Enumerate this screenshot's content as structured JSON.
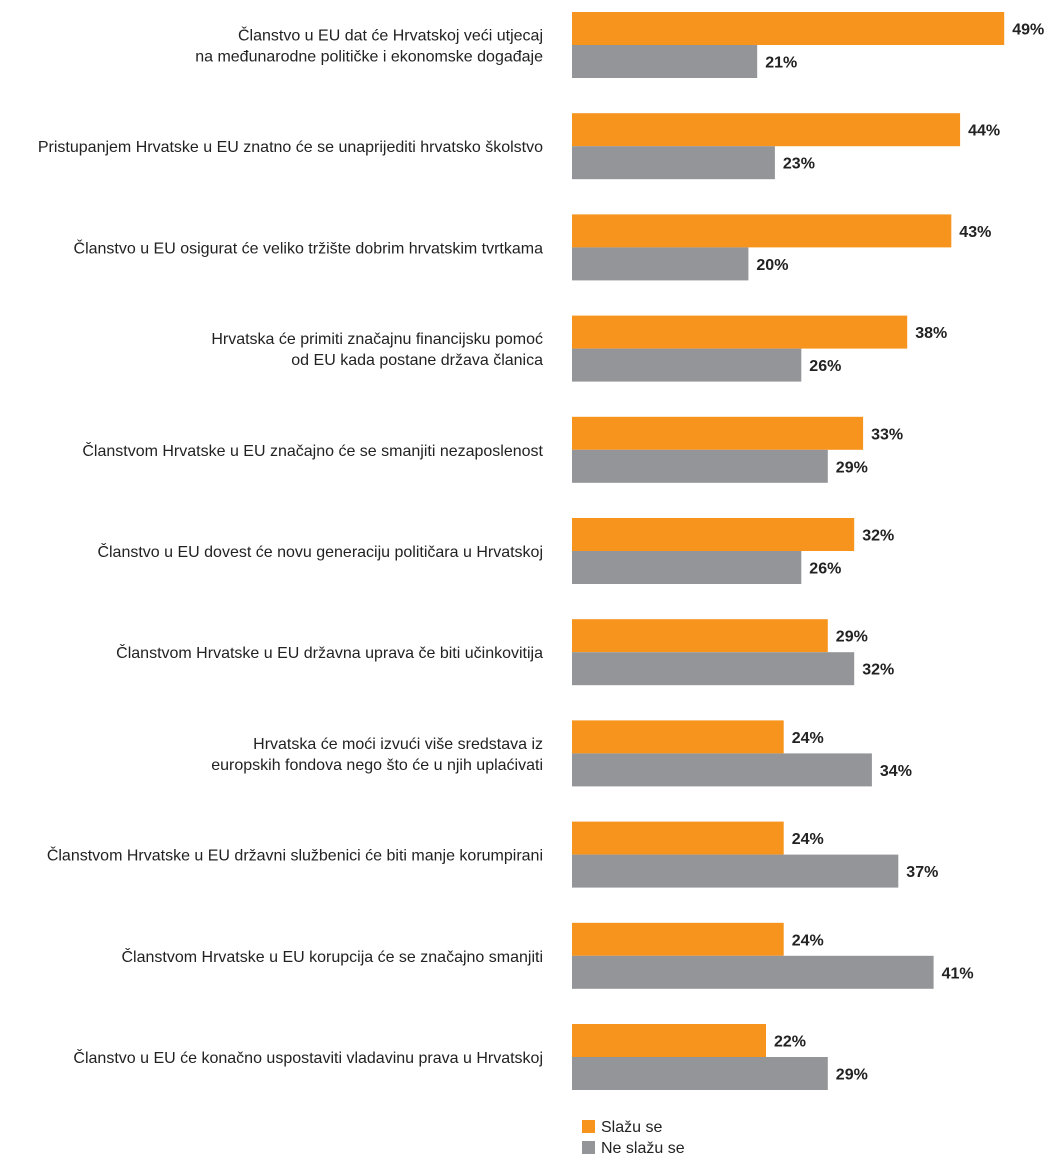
{
  "chart_data": {
    "type": "bar",
    "orientation": "horizontal",
    "unit": "%",
    "categories": [
      [
        "Članstvo u EU dat će Hrvatskoj veći utjecaj",
        "na međunarodne političke i ekonomske događaje"
      ],
      [
        "Pristupanjem Hrvatske u EU znatno će se unaprijediti hrvatsko školstvo"
      ],
      [
        "Članstvo u EU osigurat će veliko tržište dobrim hrvatskim tvrtkama"
      ],
      [
        "Hrvatska će primiti značajnu financijsku pomoć",
        "od EU kada postane država članica"
      ],
      [
        "Članstvom Hrvatske u EU značajno će se smanjiti nezaposlenost"
      ],
      [
        "Članstvo u EU dovest će novu generaciju političara u Hrvatskoj"
      ],
      [
        "Članstvom Hrvatske u EU državna uprava če biti učinkovitija"
      ],
      [
        "Hrvatska će moći izvući više sredstava iz",
        "europskih fondova nego što će u njih uplaćivati"
      ],
      [
        "Članstvom Hrvatske u EU državni službenici će biti manje korumpirani"
      ],
      [
        "Članstvom Hrvatske u EU korupcija će se značajno smanjiti"
      ],
      [
        "Članstvo u EU će konačno uspostaviti vladavinu prava u Hrvatskoj"
      ]
    ],
    "series": [
      {
        "name": "Slažu se",
        "color": "#F7941D",
        "values": [
          49,
          44,
          43,
          38,
          33,
          32,
          29,
          24,
          24,
          24,
          22
        ]
      },
      {
        "name": "Ne slažu se",
        "color": "#939598",
        "values": [
          21,
          23,
          20,
          26,
          29,
          26,
          32,
          34,
          37,
          41,
          29
        ]
      }
    ],
    "xlim": [
      0,
      50
    ],
    "grid": false,
    "legend": "bottom"
  }
}
